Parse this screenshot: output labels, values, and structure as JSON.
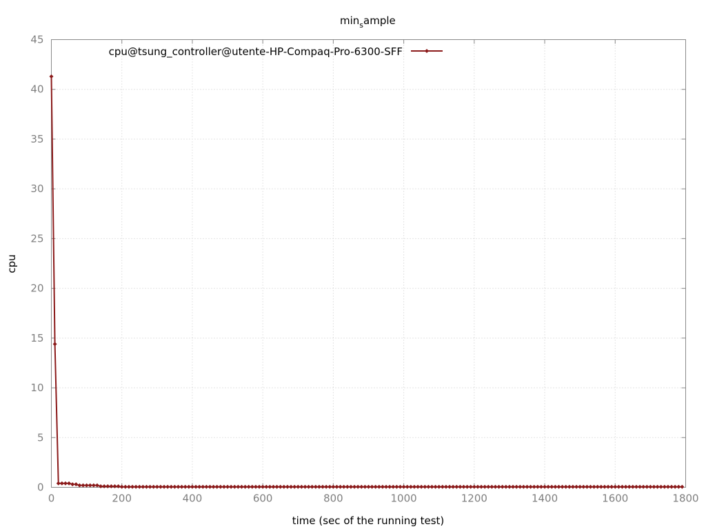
{
  "chart_data": {
    "type": "line",
    "title_main": "min",
    "title_sub": "s",
    "title_rest": "ample",
    "xlabel": "time (sec of the running test)",
    "ylabel": "cpu",
    "xlim": [
      0,
      1800
    ],
    "ylim": [
      0,
      45
    ],
    "x_ticks": [
      0,
      200,
      400,
      600,
      800,
      1000,
      1200,
      1400,
      1600,
      1800
    ],
    "y_ticks": [
      0,
      5,
      10,
      15,
      20,
      25,
      30,
      35,
      40,
      45
    ],
    "grid": true,
    "legend_position": "top",
    "series": [
      {
        "name": "cpu@tsung_controller@utente-HP-Compaq-Pro-6300-SFF",
        "color": "#8b1a1a",
        "points": [
          [
            0,
            41.3
          ],
          [
            10,
            14.4
          ],
          [
            20,
            0.4
          ],
          [
            30,
            0.4
          ],
          [
            40,
            0.4
          ],
          [
            50,
            0.4
          ],
          [
            60,
            0.3
          ],
          [
            70,
            0.3
          ],
          [
            80,
            0.2
          ],
          [
            90,
            0.2
          ],
          [
            100,
            0.2
          ],
          [
            110,
            0.2
          ],
          [
            120,
            0.2
          ],
          [
            130,
            0.2
          ],
          [
            140,
            0.1
          ],
          [
            150,
            0.1
          ],
          [
            160,
            0.1
          ],
          [
            170,
            0.1
          ],
          [
            180,
            0.1
          ],
          [
            190,
            0.1
          ],
          [
            200,
            0.05
          ]
        ],
        "flat_after": {
          "from": 210,
          "to": 1790,
          "step": 10,
          "value": 0.05
        }
      }
    ]
  }
}
